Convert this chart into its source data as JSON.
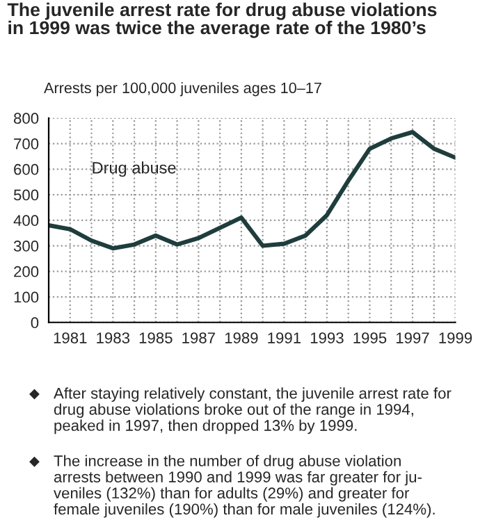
{
  "chart_data": {
    "type": "line",
    "title": "The juvenile arrest rate for drug abuse violations\nin 1999 was twice the average rate of the 1980’s",
    "ylabel": "Arrests per 100,000 juveniles ages 10–17",
    "x": [
      1980,
      1981,
      1982,
      1983,
      1984,
      1985,
      1986,
      1987,
      1988,
      1989,
      1990,
      1991,
      1992,
      1993,
      1994,
      1995,
      1996,
      1997,
      1998,
      1999
    ],
    "series": [
      {
        "name": "Drug abuse",
        "color": "#1f3d3d",
        "values": [
          380,
          365,
          320,
          290,
          305,
          340,
          305,
          330,
          370,
          410,
          300,
          308,
          340,
          420,
          555,
          680,
          720,
          745,
          680,
          645
        ]
      }
    ],
    "xlim": [
      1980,
      1999
    ],
    "xticks": [
      {
        "value": 1980,
        "label": null
      },
      1981,
      {
        "value": 1982,
        "label": null
      },
      1983,
      {
        "value": 1984,
        "label": null
      },
      1985,
      {
        "value": 1986,
        "label": null
      },
      1987,
      {
        "value": 1988,
        "label": null
      },
      1989,
      {
        "value": 1990,
        "label": null
      },
      1991,
      {
        "value": 1992,
        "label": null
      },
      1993,
      {
        "value": 1994,
        "label": null
      },
      1995,
      {
        "value": 1996,
        "label": null
      },
      1997,
      {
        "value": 1998,
        "label": null
      },
      1999
    ],
    "ylim": [
      0,
      800
    ],
    "yticks": [
      0,
      100,
      200,
      300,
      400,
      500,
      600,
      700,
      800
    ],
    "grid": true,
    "marker": "none",
    "line_style": "solid",
    "legend": false,
    "annotations": [
      "◆ After staying relatively constant, the juvenile arrest rate for\ndrug abuse violations broke out of the range in 1994,\npeaked in 1997, then dropped 13% by 1999.",
      "◆ The increase in the number of drug abuse violation\narrests between 1990 and 1999 was far greater for ju-\nveniles (132%) than for adults (29%) and greater for\nfemale juveniles (190%) than for male juveniles (124%)."
    ]
  }
}
